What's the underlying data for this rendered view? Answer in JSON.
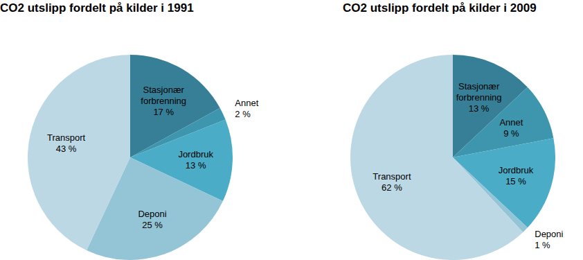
{
  "chart_data": [
    {
      "type": "pie",
      "title": "CO2 utslipp fordelt på kilder i 1991",
      "categories": [
        "Stasjonær forbrenning",
        "Annet",
        "Jordbruk",
        "Deponi",
        "Transport"
      ],
      "values": [
        17,
        2,
        13,
        25,
        43
      ],
      "value_labels": [
        "17 %",
        "2 %",
        "13 %",
        "25 %",
        "43 %"
      ],
      "colors": [
        "#367f97",
        "#3e96ae",
        "#4aacc6",
        "#93c5d7",
        "#bcd8e4"
      ],
      "data_labels": true
    },
    {
      "type": "pie",
      "title": "CO2 utslipp fordelt på kilder i 2009",
      "categories": [
        "Stasjonær forbrenning",
        "Annet",
        "Jordbruk",
        "Deponi",
        "Transport"
      ],
      "values": [
        13,
        9,
        15,
        1,
        62
      ],
      "value_labels": [
        "13 %",
        "9 %",
        "15 %",
        "1 %",
        "62 %"
      ],
      "colors": [
        "#367f97",
        "#3e96ae",
        "#4aacc6",
        "#93c5d7",
        "#bcd8e4"
      ],
      "data_labels": true
    }
  ]
}
